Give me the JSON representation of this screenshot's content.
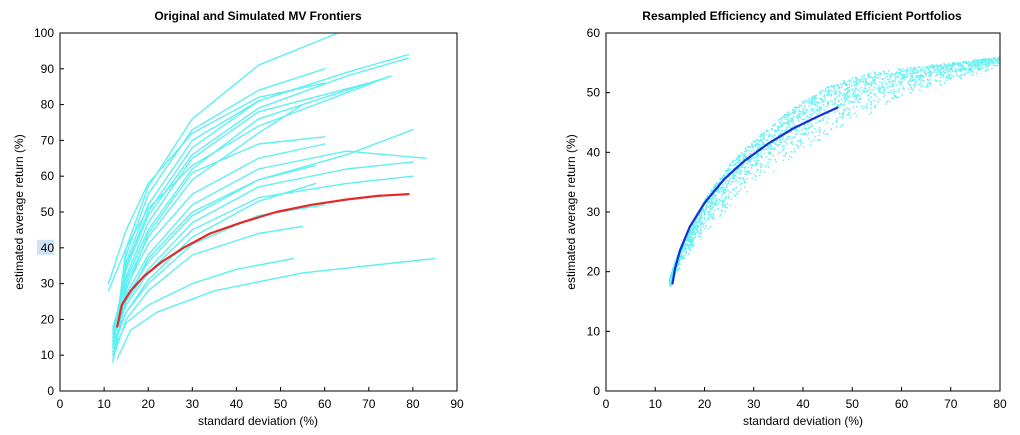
{
  "colors": {
    "cyan": "#5ff0f2",
    "red": "#e62828",
    "blue": "#1530d8",
    "axis": "#000000",
    "highlight": "#cfe3f7"
  },
  "chart_data": [
    {
      "type": "line",
      "title": "Original and Simulated MV Frontiers",
      "xlabel": "standard deviation (%)",
      "ylabel": "estimated average return (%)",
      "xlim": [
        0,
        90
      ],
      "ylim": [
        0,
        100
      ],
      "xticks": [
        0,
        10,
        20,
        30,
        40,
        50,
        60,
        70,
        80,
        90
      ],
      "yticks": [
        0,
        10,
        20,
        30,
        40,
        50,
        60,
        70,
        80,
        90,
        100
      ],
      "highlighted_ytick": 40,
      "grid": false,
      "series": [
        {
          "role": "original",
          "color": "#e62828",
          "x": [
            13,
            14,
            16,
            19,
            23,
            28,
            34,
            41,
            49,
            57,
            65,
            72,
            79
          ],
          "y": [
            18,
            24,
            28,
            32,
            36,
            40,
            44,
            47,
            50,
            52,
            53.5,
            54.5,
            55
          ]
        },
        {
          "role": "simulated",
          "color": "#5ff0f2",
          "x": [
            12,
            15,
            20,
            30,
            45,
            63
          ],
          "y": [
            10,
            40,
            57,
            76,
            91,
            100
          ]
        },
        {
          "role": "simulated",
          "color": "#5ff0f2",
          "x": [
            12,
            15,
            20,
            30,
            45,
            65,
            79
          ],
          "y": [
            14,
            35,
            50,
            68,
            81,
            89,
            94
          ]
        },
        {
          "role": "simulated",
          "color": "#5ff0f2",
          "x": [
            12,
            15,
            20,
            30,
            45,
            65,
            79
          ],
          "y": [
            16,
            34,
            49,
            66,
            79,
            88,
            93
          ]
        },
        {
          "role": "simulated",
          "color": "#5ff0f2",
          "x": [
            12,
            15,
            20,
            30,
            45,
            60
          ],
          "y": [
            12,
            38,
            55,
            73,
            84,
            90
          ]
        },
        {
          "role": "simulated",
          "color": "#5ff0f2",
          "x": [
            12,
            15,
            20,
            30,
            45,
            70
          ],
          "y": [
            15,
            32,
            47,
            65,
            78,
            86
          ]
        },
        {
          "role": "simulated",
          "color": "#5ff0f2",
          "x": [
            12,
            15,
            20,
            30,
            45,
            75
          ],
          "y": [
            17,
            31,
            45,
            62,
            76,
            88
          ]
        },
        {
          "role": "simulated",
          "color": "#5ff0f2",
          "x": [
            12,
            15,
            20,
            30,
            45,
            55
          ],
          "y": [
            13,
            36,
            52,
            70,
            81,
            85
          ]
        },
        {
          "role": "simulated",
          "color": "#5ff0f2",
          "x": [
            12,
            15,
            20,
            30,
            45,
            55
          ],
          "y": [
            18,
            30,
            43,
            59,
            72,
            80
          ]
        },
        {
          "role": "simulated",
          "color": "#5ff0f2",
          "x": [
            12,
            15,
            20,
            30,
            45,
            60
          ],
          "y": [
            15,
            29,
            41,
            55,
            65,
            69
          ]
        },
        {
          "role": "simulated",
          "color": "#5ff0f2",
          "x": [
            12,
            15,
            20,
            30,
            45,
            65,
            83
          ],
          "y": [
            16,
            27,
            38,
            52,
            62,
            67,
            65
          ]
        },
        {
          "role": "simulated",
          "color": "#5ff0f2",
          "x": [
            12,
            15,
            20,
            30,
            45,
            65,
            80
          ],
          "y": [
            14,
            26,
            36,
            49,
            59,
            66,
            73
          ]
        },
        {
          "role": "simulated",
          "color": "#5ff0f2",
          "x": [
            12,
            15,
            20,
            30,
            45,
            65,
            80
          ],
          "y": [
            17,
            25,
            34,
            47,
            57,
            62,
            64
          ]
        },
        {
          "role": "simulated",
          "color": "#5ff0f2",
          "x": [
            12,
            15,
            20,
            30,
            45,
            65,
            80
          ],
          "y": [
            15,
            24,
            33,
            45,
            54,
            58,
            60
          ]
        },
        {
          "role": "simulated",
          "color": "#5ff0f2",
          "x": [
            12,
            15,
            20,
            30,
            45,
            60
          ],
          "y": [
            13,
            22,
            30,
            41,
            49,
            52
          ]
        },
        {
          "role": "simulated",
          "color": "#5ff0f2",
          "x": [
            12,
            15,
            20,
            30,
            45,
            55
          ],
          "y": [
            9,
            20,
            28,
            38,
            44,
            46
          ]
        },
        {
          "role": "simulated",
          "color": "#5ff0f2",
          "x": [
            12,
            15,
            20,
            30,
            40,
            53
          ],
          "y": [
            11,
            19,
            24,
            30,
            34,
            37
          ]
        },
        {
          "role": "simulated",
          "color": "#5ff0f2",
          "x": [
            13,
            16,
            22,
            35,
            55,
            85
          ],
          "y": [
            9,
            17,
            22,
            28,
            33,
            37
          ]
        },
        {
          "role": "simulated",
          "color": "#5ff0f2",
          "x": [
            12,
            15,
            20,
            30,
            45,
            60
          ],
          "y": [
            8,
            28,
            44,
            61,
            69,
            71
          ]
        },
        {
          "role": "simulated",
          "color": "#5ff0f2",
          "x": [
            12,
            15,
            20,
            30,
            45,
            58
          ],
          "y": [
            11,
            25,
            37,
            50,
            59,
            63
          ]
        },
        {
          "role": "simulated",
          "color": "#5ff0f2",
          "x": [
            12,
            15,
            20,
            30,
            45,
            58
          ],
          "y": [
            12,
            22,
            31,
            43,
            53,
            58
          ]
        },
        {
          "role": "simulated",
          "color": "#5ff0f2",
          "x": [
            11,
            15,
            20,
            30,
            45,
            60
          ],
          "y": [
            30,
            45,
            58,
            72,
            82,
            86
          ]
        },
        {
          "role": "simulated",
          "color": "#5ff0f2",
          "x": [
            11,
            15,
            20,
            30,
            45,
            75
          ],
          "y": [
            28,
            40,
            51,
            63,
            74,
            88
          ]
        }
      ]
    },
    {
      "type": "scatter",
      "title": "Resampled Efficiency and Simulated Efficient Portfolios",
      "xlabel": "standard deviation (%)",
      "ylabel": "estimated average return (%)",
      "xlim": [
        0,
        80
      ],
      "ylim": [
        0,
        60
      ],
      "xticks": [
        0,
        10,
        20,
        30,
        40,
        50,
        60,
        70,
        80
      ],
      "yticks": [
        0,
        10,
        20,
        30,
        40,
        50,
        60
      ],
      "grid": false,
      "scatter_cloud": {
        "color": "#5ff0f2",
        "upper_x": [
          13,
          15,
          20,
          25,
          30,
          35,
          40,
          45,
          50,
          55,
          60,
          65,
          70,
          75,
          80
        ],
        "upper_y": [
          19,
          24,
          32,
          38,
          42,
          45.5,
          48.5,
          51,
          52.5,
          53.5,
          54,
          54.5,
          55,
          55.5,
          56
        ],
        "lower_x": [
          13,
          15,
          20,
          25,
          30,
          35,
          40,
          45,
          50,
          55,
          60,
          65,
          70,
          75,
          80
        ],
        "lower_y": [
          17,
          20,
          25,
          29,
          32.5,
          35.5,
          38.5,
          41,
          43.5,
          45.5,
          47.5,
          49.5,
          51,
          52.5,
          54
        ]
      },
      "series": [
        {
          "role": "resampled-efficient-frontier",
          "color": "#1530d8",
          "x": [
            13.5,
            14,
            15,
            17,
            20,
            24,
            28,
            33,
            38,
            43,
            47
          ],
          "y": [
            18,
            20.5,
            23.5,
            27.5,
            31.5,
            35.5,
            38.5,
            41.5,
            44,
            46,
            47.5
          ]
        }
      ]
    }
  ]
}
